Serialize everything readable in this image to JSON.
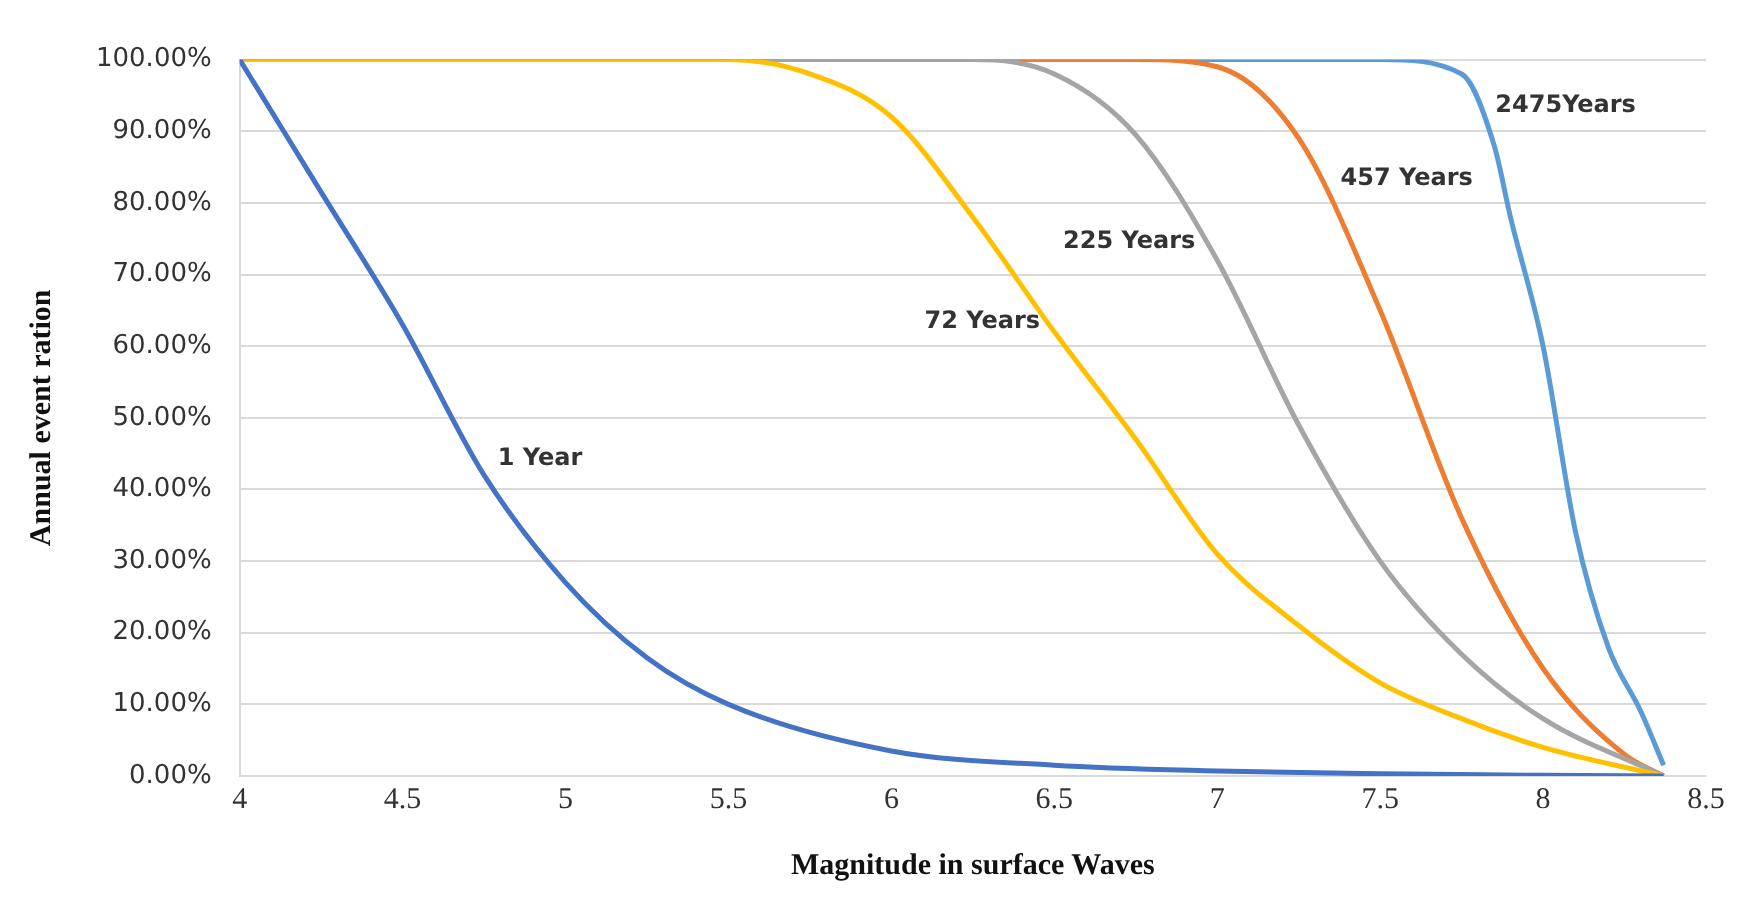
{
  "chart_data": {
    "type": "line",
    "xlabel": "Magnitude in surface Waves",
    "ylabel": "Annual event ration",
    "xlim": [
      4,
      8.5
    ],
    "xticks": [
      4,
      4.5,
      5,
      5.5,
      6,
      6.5,
      7,
      7.5,
      8,
      8.5
    ],
    "ylim": [
      0,
      100
    ],
    "yticks": [
      {
        "value": 0,
        "label": "0.00%"
      },
      {
        "value": 10,
        "label": "10.00%"
      },
      {
        "value": 20,
        "label": "20.00%"
      },
      {
        "value": 30,
        "label": "30.00%"
      },
      {
        "value": 40,
        "label": "40.00%"
      },
      {
        "value": 50,
        "label": "50.00%"
      },
      {
        "value": 60,
        "label": "60.00%"
      },
      {
        "value": 70,
        "label": "70.00%"
      },
      {
        "value": 80,
        "label": "80.00%"
      },
      {
        "value": 90,
        "label": "90.00%"
      },
      {
        "value": 100,
        "label": "100.00%"
      }
    ],
    "grid": "y",
    "legend": false,
    "marker": "none",
    "line_style": "solid",
    "series": [
      {
        "name": "1 Year",
        "color": "#4472c4",
        "x": [
          4,
          4.25,
          4.5,
          4.75,
          5,
          5.25,
          5.5,
          6,
          6.5,
          7,
          7.5,
          8,
          8.37
        ],
        "values": [
          100,
          81.5,
          63,
          42,
          27,
          16.5,
          10,
          3.5,
          1.5,
          0.7,
          0.3,
          0.1,
          0
        ]
      },
      {
        "name": "72 Years",
        "color": "#ffc000",
        "x": [
          4,
          5.5,
          5.75,
          6,
          6.25,
          6.5,
          6.75,
          7,
          7.25,
          7.5,
          7.75,
          8,
          8.37
        ],
        "values": [
          100,
          100,
          98,
          92,
          78,
          62,
          47,
          31,
          21,
          13,
          8,
          4,
          0
        ]
      },
      {
        "name": "225 Years",
        "color": "#a5a5a5",
        "x": [
          4,
          6.25,
          6.5,
          6.75,
          7,
          7.25,
          7.5,
          7.75,
          8,
          8.37
        ],
        "values": [
          100,
          100,
          98,
          89.5,
          72,
          49,
          30,
          17,
          8,
          0
        ]
      },
      {
        "name": "457 Years",
        "color": "#ed7d31",
        "x": [
          4,
          6.75,
          7,
          7.25,
          7.5,
          7.75,
          8,
          8.25,
          8.37
        ],
        "values": [
          100,
          100,
          99,
          89,
          65,
          36,
          15,
          3,
          0
        ]
      },
      {
        "name": "2475Years",
        "color": "#5b9bd5",
        "x": [
          4,
          7.5,
          7.75,
          7.85,
          7.9,
          8,
          8.1,
          8.2,
          8.3,
          8.37
        ],
        "values": [
          100,
          100,
          98,
          88,
          78,
          60,
          34,
          18,
          9,
          1.5
        ]
      }
    ]
  }
}
